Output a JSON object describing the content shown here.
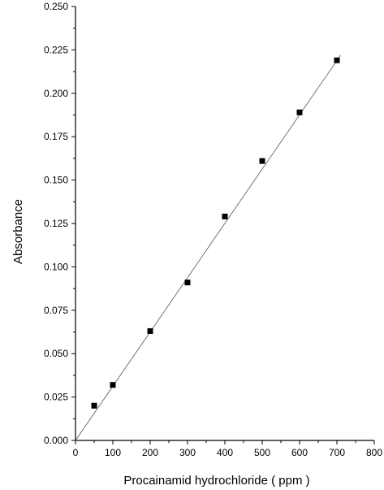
{
  "chart_data": {
    "type": "scatter",
    "title": "",
    "xlabel": "Procainamid hydrochloride ( ppm )",
    "ylabel": "Absorbance",
    "xlim": [
      0,
      800
    ],
    "ylim": [
      0,
      0.25
    ],
    "x_ticks": [
      "0",
      "100",
      "200",
      "300",
      "400",
      "500",
      "600",
      "700",
      "800"
    ],
    "y_ticks": [
      "0.000",
      "0.025",
      "0.050",
      "0.075",
      "0.100",
      "0.125",
      "0.150",
      "0.175",
      "0.200",
      "0.225",
      "0.250"
    ],
    "grid": false,
    "legend": "none",
    "series": [
      {
        "x": [
          50,
          100,
          200,
          300,
          400,
          500,
          600,
          700
        ],
        "y": [
          0.02,
          0.032,
          0.063,
          0.091,
          0.129,
          0.161,
          0.189,
          0.219
        ],
        "marker": "square",
        "color": "#000000"
      }
    ],
    "fit_line": {
      "x": [
        0,
        710
      ],
      "y": [
        0.0,
        0.222
      ],
      "color": "#555555"
    }
  }
}
